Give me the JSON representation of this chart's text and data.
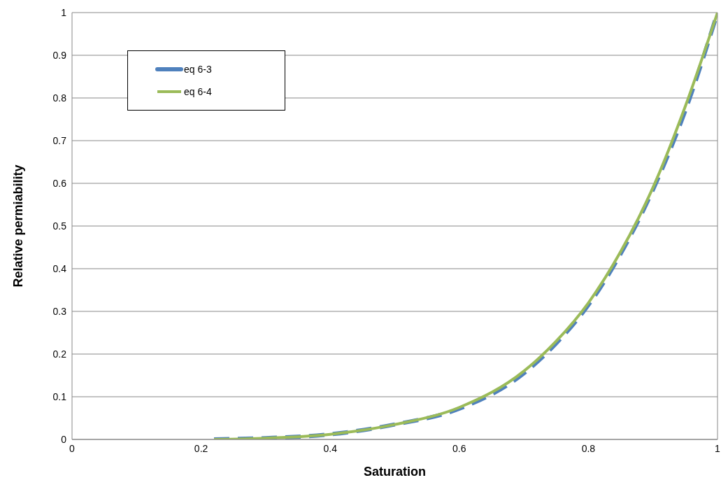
{
  "chart_data": {
    "type": "line",
    "xlabel": "Saturation",
    "ylabel": "Relative permiability",
    "xlim": [
      0,
      1
    ],
    "xticks": [
      0,
      0.2,
      0.4,
      0.6,
      0.8,
      1
    ],
    "ylim": [
      0,
      1
    ],
    "yticks": [
      0,
      0.1,
      0.2,
      0.3,
      0.4,
      0.5,
      0.6,
      0.7,
      0.8,
      0.9,
      1
    ],
    "grid": "y",
    "legend": "top left",
    "marker": "none",
    "x": [
      0.22,
      0.3,
      0.4,
      0.5,
      0.6,
      0.7,
      0.75,
      0.8,
      0.85,
      0.9,
      0.95,
      1.0
    ],
    "series": [
      {
        "name": "eq 6-3",
        "color": "#4f81bd",
        "line_style": "dashed",
        "values": [
          0,
          0.003,
          0.012,
          0.035,
          0.072,
          0.155,
          0.225,
          0.315,
          0.435,
          0.585,
          0.77,
          1.0
        ]
      },
      {
        "name": "eq 6-4",
        "color": "#9bbb59",
        "line_style": "solid",
        "values": [
          0,
          0.003,
          0.012,
          0.035,
          0.075,
          0.16,
          0.23,
          0.32,
          0.44,
          0.59,
          0.78,
          1.0
        ]
      }
    ]
  }
}
